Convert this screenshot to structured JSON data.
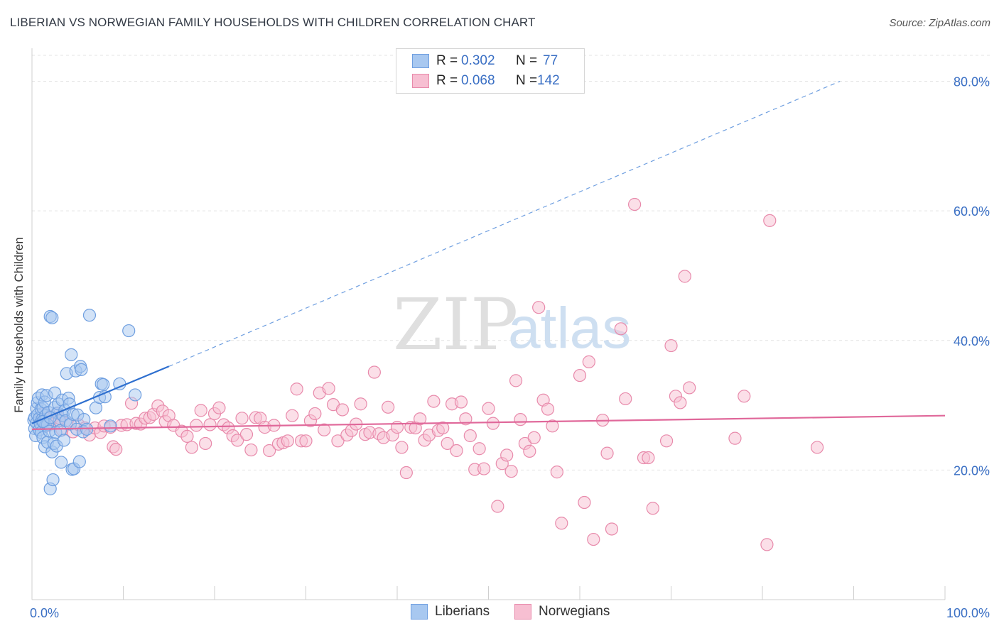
{
  "header": {
    "title": "LIBERIAN VS NORWEGIAN FAMILY HOUSEHOLDS WITH CHILDREN CORRELATION CHART",
    "source": "Source: ZipAtlas.com"
  },
  "watermark": {
    "zip": "ZIP",
    "atlas": "atlas"
  },
  "legend": {
    "rows": [
      {
        "r_label": "R =",
        "r_value": "0.302",
        "n_label": "N =",
        "n_value": "77",
        "color": "#a8c8f0",
        "stroke": "#6f9fe0"
      },
      {
        "r_label": "R =",
        "r_value": "0.068",
        "n_label": "N =",
        "n_value": "142",
        "color": "#f7bfd2",
        "stroke": "#e88aab"
      }
    ]
  },
  "bottom_legend": {
    "items": [
      {
        "label": "Liberians",
        "color": "#a8c8f0",
        "stroke": "#6f9fe0"
      },
      {
        "label": "Norwegians",
        "color": "#f7bfd2",
        "stroke": "#e88aab"
      }
    ]
  },
  "chart_data": {
    "type": "scatter",
    "title": "LIBERIAN VS NORWEGIAN FAMILY HOUSEHOLDS WITH CHILDREN CORRELATION CHART",
    "xlabel": "",
    "ylabel": "Family Households with Children",
    "xlim": [
      0,
      100
    ],
    "ylim": [
      0,
      84
    ],
    "x_tick_labels": [
      {
        "value": 0,
        "label": "0.0%"
      },
      {
        "value": 100,
        "label": "100.0%"
      }
    ],
    "y_tick_labels": [
      {
        "value": 20,
        "label": "20.0%"
      },
      {
        "value": 40,
        "label": "40.0%"
      },
      {
        "value": 60,
        "label": "60.0%"
      },
      {
        "value": 80,
        "label": "80.0%"
      }
    ],
    "x_minor_ticks": [
      10,
      20,
      30,
      40,
      50,
      60,
      70,
      80,
      90
    ],
    "series": [
      {
        "name": "Liberians",
        "color": "#a8c8f0",
        "stroke": "#6f9fe0",
        "trend": {
          "x0": 0,
          "y0": 27.2,
          "x1": 15,
          "y1": 36.0,
          "color": "#2e6fcf",
          "dashed_to_x": 88.5,
          "dashed_to_y": 80.0
        },
        "points": [
          [
            0.2,
            27.7
          ],
          [
            0.3,
            28.1
          ],
          [
            0.3,
            26.4
          ],
          [
            0.4,
            25.3
          ],
          [
            0.5,
            29.5
          ],
          [
            0.5,
            27.3
          ],
          [
            0.6,
            30.4
          ],
          [
            0.6,
            28.5
          ],
          [
            0.7,
            31.1
          ],
          [
            0.8,
            28.0
          ],
          [
            0.8,
            26.2
          ],
          [
            0.9,
            27.2
          ],
          [
            1.0,
            29.4
          ],
          [
            1.0,
            25.8
          ],
          [
            1.1,
            27.8
          ],
          [
            1.1,
            31.6
          ],
          [
            1.2,
            29.6
          ],
          [
            1.2,
            25.0
          ],
          [
            1.3,
            27.4
          ],
          [
            1.4,
            30.5
          ],
          [
            1.4,
            23.6
          ],
          [
            1.5,
            28.4
          ],
          [
            1.5,
            26.9
          ],
          [
            1.6,
            31.5
          ],
          [
            1.7,
            24.3
          ],
          [
            1.7,
            27.0
          ],
          [
            1.8,
            28.9
          ],
          [
            1.9,
            26.0
          ],
          [
            2.0,
            17.1
          ],
          [
            2.0,
            43.7
          ],
          [
            2.2,
            43.5
          ],
          [
            2.2,
            22.8
          ],
          [
            2.3,
            18.5
          ],
          [
            2.4,
            24.1
          ],
          [
            2.5,
            29.7
          ],
          [
            2.5,
            31.9
          ],
          [
            2.6,
            25.8
          ],
          [
            2.7,
            23.7
          ],
          [
            2.8,
            28.8
          ],
          [
            2.9,
            30.2
          ],
          [
            3.0,
            27.6
          ],
          [
            3.1,
            26.1
          ],
          [
            3.2,
            21.2
          ],
          [
            3.3,
            30.8
          ],
          [
            3.4,
            28.4
          ],
          [
            3.5,
            24.6
          ],
          [
            3.6,
            29.2
          ],
          [
            3.7,
            27.6
          ],
          [
            3.8,
            34.9
          ],
          [
            4.0,
            31.1
          ],
          [
            4.1,
            30.2
          ],
          [
            4.2,
            27.1
          ],
          [
            4.3,
            37.8
          ],
          [
            4.4,
            20.1
          ],
          [
            4.5,
            28.6
          ],
          [
            4.6,
            20.2
          ],
          [
            4.8,
            35.3
          ],
          [
            4.9,
            26.3
          ],
          [
            5.0,
            28.5
          ],
          [
            5.2,
            21.3
          ],
          [
            5.3,
            36.0
          ],
          [
            5.4,
            35.5
          ],
          [
            5.6,
            25.9
          ],
          [
            5.7,
            27.8
          ],
          [
            6.0,
            26.3
          ],
          [
            6.3,
            43.9
          ],
          [
            7.0,
            29.6
          ],
          [
            7.4,
            31.2
          ],
          [
            7.6,
            33.3
          ],
          [
            7.8,
            33.2
          ],
          [
            8.0,
            31.3
          ],
          [
            8.6,
            26.8
          ],
          [
            9.6,
            33.3
          ],
          [
            10.6,
            41.5
          ],
          [
            11.3,
            31.6
          ],
          [
            1.2,
            27.5
          ],
          [
            2.0,
            28.1
          ]
        ]
      },
      {
        "name": "Norwegians",
        "color": "#f7bfd2",
        "stroke": "#e88aab",
        "trend": {
          "x0": 0,
          "y0": 26.3,
          "x1": 100,
          "y1": 28.4,
          "color": "#e0689a"
        },
        "points": [
          [
            0.8,
            27.7
          ],
          [
            1.2,
            28.6
          ],
          [
            1.5,
            28.0
          ],
          [
            1.8,
            26.9
          ],
          [
            2.0,
            27.4
          ],
          [
            2.3,
            28.1
          ],
          [
            2.7,
            28.7
          ],
          [
            3.3,
            26.2
          ],
          [
            3.8,
            27.2
          ],
          [
            4.5,
            25.9
          ],
          [
            5.1,
            27.0
          ],
          [
            5.8,
            26.5
          ],
          [
            6.3,
            25.4
          ],
          [
            6.9,
            26.5
          ],
          [
            7.5,
            25.8
          ],
          [
            7.9,
            26.8
          ],
          [
            8.6,
            26.6
          ],
          [
            8.9,
            23.6
          ],
          [
            9.2,
            23.2
          ],
          [
            9.8,
            26.9
          ],
          [
            10.4,
            27.0
          ],
          [
            10.9,
            30.3
          ],
          [
            11.4,
            27.2
          ],
          [
            11.9,
            27.1
          ],
          [
            12.4,
            28.0
          ],
          [
            12.9,
            28.1
          ],
          [
            13.3,
            28.6
          ],
          [
            13.8,
            29.9
          ],
          [
            14.3,
            29.1
          ],
          [
            14.6,
            27.5
          ],
          [
            15.0,
            28.4
          ],
          [
            15.5,
            26.9
          ],
          [
            16.4,
            26.0
          ],
          [
            17.0,
            25.2
          ],
          [
            17.5,
            23.5
          ],
          [
            18.0,
            26.9
          ],
          [
            18.5,
            29.2
          ],
          [
            19.0,
            24.1
          ],
          [
            19.5,
            27.0
          ],
          [
            20.0,
            28.7
          ],
          [
            20.5,
            29.6
          ],
          [
            21.0,
            27.0
          ],
          [
            21.5,
            26.5
          ],
          [
            22.0,
            25.3
          ],
          [
            22.5,
            24.6
          ],
          [
            23.0,
            28.0
          ],
          [
            23.5,
            25.5
          ],
          [
            24.0,
            23.1
          ],
          [
            24.5,
            28.1
          ],
          [
            25.0,
            28.0
          ],
          [
            25.5,
            26.6
          ],
          [
            26.0,
            23.0
          ],
          [
            26.5,
            26.9
          ],
          [
            27.0,
            24.0
          ],
          [
            27.5,
            24.2
          ],
          [
            28.0,
            24.5
          ],
          [
            28.5,
            28.4
          ],
          [
            29.0,
            32.5
          ],
          [
            29.5,
            24.5
          ],
          [
            30.0,
            24.5
          ],
          [
            30.5,
            27.6
          ],
          [
            31.0,
            28.7
          ],
          [
            31.5,
            31.9
          ],
          [
            32.0,
            26.2
          ],
          [
            32.5,
            32.6
          ],
          [
            33.0,
            30.1
          ],
          [
            33.5,
            24.5
          ],
          [
            34.0,
            29.3
          ],
          [
            34.5,
            25.4
          ],
          [
            35.0,
            26.1
          ],
          [
            35.5,
            27.1
          ],
          [
            36.0,
            30.2
          ],
          [
            36.5,
            25.5
          ],
          [
            37.0,
            25.8
          ],
          [
            37.5,
            35.1
          ],
          [
            38.0,
            25.6
          ],
          [
            38.5,
            25.0
          ],
          [
            39.0,
            29.7
          ],
          [
            39.5,
            25.4
          ],
          [
            40.0,
            26.6
          ],
          [
            40.5,
            23.5
          ],
          [
            41.0,
            19.6
          ],
          [
            41.5,
            26.6
          ],
          [
            42.0,
            26.5
          ],
          [
            42.5,
            27.9
          ],
          [
            43.0,
            24.6
          ],
          [
            43.5,
            25.4
          ],
          [
            44.0,
            30.6
          ],
          [
            44.5,
            26.1
          ],
          [
            45.0,
            26.5
          ],
          [
            45.5,
            24.1
          ],
          [
            46.0,
            30.2
          ],
          [
            46.5,
            23.0
          ],
          [
            47.0,
            30.5
          ],
          [
            47.5,
            27.9
          ],
          [
            48.0,
            25.3
          ],
          [
            48.5,
            20.1
          ],
          [
            49.0,
            23.3
          ],
          [
            49.5,
            20.2
          ],
          [
            50.0,
            29.5
          ],
          [
            50.5,
            27.2
          ],
          [
            51.0,
            14.4
          ],
          [
            51.5,
            21.0
          ],
          [
            52.0,
            22.3
          ],
          [
            52.5,
            19.8
          ],
          [
            53.0,
            33.8
          ],
          [
            53.5,
            27.8
          ],
          [
            54.0,
            24.1
          ],
          [
            54.5,
            22.9
          ],
          [
            55.0,
            25.0
          ],
          [
            55.5,
            45.1
          ],
          [
            56.0,
            30.8
          ],
          [
            56.5,
            29.4
          ],
          [
            57.0,
            26.8
          ],
          [
            57.5,
            19.7
          ],
          [
            58.0,
            11.8
          ],
          [
            60.0,
            34.6
          ],
          [
            60.5,
            15.0
          ],
          [
            61.0,
            36.7
          ],
          [
            61.5,
            9.3
          ],
          [
            62.5,
            27.7
          ],
          [
            63.0,
            22.6
          ],
          [
            63.5,
            10.9
          ],
          [
            64.5,
            41.8
          ],
          [
            65.0,
            31.0
          ],
          [
            66.0,
            61.0
          ],
          [
            67.0,
            21.9
          ],
          [
            67.5,
            21.9
          ],
          [
            68.0,
            14.1
          ],
          [
            69.5,
            24.5
          ],
          [
            70.0,
            39.2
          ],
          [
            70.5,
            31.4
          ],
          [
            71.0,
            30.4
          ],
          [
            71.5,
            49.9
          ],
          [
            72.0,
            32.7
          ],
          [
            77.0,
            24.9
          ],
          [
            78.0,
            31.4
          ],
          [
            80.5,
            8.5
          ],
          [
            80.8,
            58.5
          ],
          [
            86.0,
            23.5
          ],
          [
            2.5,
            27.5
          ],
          [
            3.0,
            28.0
          ]
        ]
      }
    ]
  }
}
